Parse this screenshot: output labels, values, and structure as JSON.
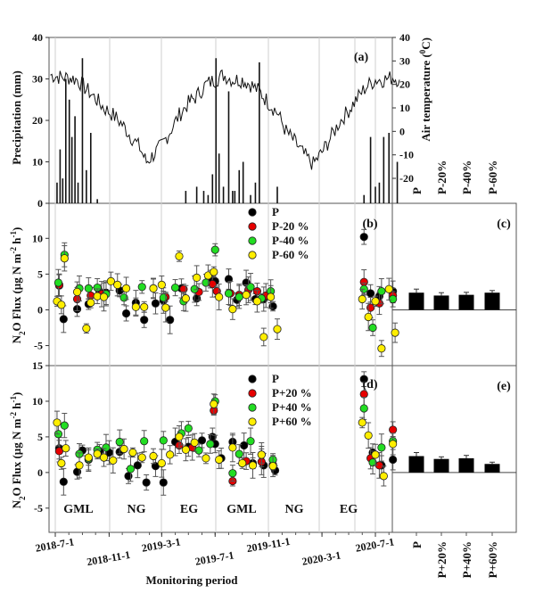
{
  "chart_data": [
    {
      "id": "a",
      "panel_label": "(a)",
      "type": "line",
      "title": "",
      "xlabel": "",
      "ylabel_left": "Precipitation (mm)",
      "ylabel_right": "Air temperature (0C)",
      "ylabel_right_main": "Air temperature (",
      "ylabel_right_sup": "0",
      "ylabel_right_end": "C)",
      "ylim_left": [
        0,
        40
      ],
      "yticks_left": [
        0,
        10,
        20,
        30,
        40
      ],
      "ylim_right": [
        -27,
        40
      ],
      "yticks_right": [
        -20,
        -10,
        0,
        10,
        20,
        30,
        40
      ],
      "temperature_series": {
        "name": "Air temperature",
        "x": [
          "2018-6-20",
          "2018-7-15",
          "2018-8-1",
          "2018-8-20",
          "2018-9-10",
          "2018-10-1",
          "2018-10-20",
          "2018-11-10",
          "2018-12-1",
          "2018-12-20",
          "2019-1-10",
          "2019-1-25",
          "2019-2-10",
          "2019-3-1",
          "2019-3-20",
          "2019-4-10",
          "2019-5-1",
          "2019-5-20",
          "2019-6-10",
          "2019-7-1",
          "2019-7-20",
          "2019-8-10",
          "2019-9-1",
          "2019-9-20",
          "2019-10-10",
          "2019-11-1",
          "2019-11-20",
          "2019-12-10",
          "2020-1-1",
          "2020-1-20",
          "2020-2-10",
          "2020-3-1",
          "2020-3-20",
          "2020-4-10",
          "2020-5-1",
          "2020-5-20",
          "2020-6-10",
          "2020-7-1",
          "2020-7-20",
          "2020-8-10",
          "2020-8-25"
        ],
        "values": [
          24,
          23,
          23,
          22,
          18,
          14,
          10,
          7,
          3,
          -2,
          -7,
          -13,
          -10,
          -6,
          0,
          7,
          12,
          15,
          20,
          22,
          24,
          22,
          22,
          20,
          17,
          12,
          8,
          0,
          -5,
          -10,
          -14,
          -9,
          -3,
          4,
          9,
          14,
          19,
          22,
          22,
          23,
          22
        ]
      },
      "precipitation_series": {
        "name": "Precipitation",
        "x": [
          "2018-7-5",
          "2018-7-12",
          "2018-7-18",
          "2018-7-25",
          "2018-8-2",
          "2018-8-8",
          "2018-8-15",
          "2018-8-22",
          "2018-9-1",
          "2018-9-10",
          "2018-9-20",
          "2018-10-5",
          "2019-4-25",
          "2019-5-20",
          "2019-6-5",
          "2019-6-15",
          "2019-6-25",
          "2019-7-3",
          "2019-7-10",
          "2019-7-20",
          "2019-8-1",
          "2019-8-10",
          "2019-8-15",
          "2019-8-25",
          "2019-9-3",
          "2019-9-20",
          "2019-10-1",
          "2019-10-10",
          "2019-11-20",
          "2020-6-5",
          "2020-6-20",
          "2020-7-1",
          "2020-7-10",
          "2020-7-20",
          "2020-8-1",
          "2020-8-20"
        ],
        "values": [
          5,
          13,
          6,
          30,
          25,
          16,
          21,
          5,
          35,
          8,
          17,
          1,
          3,
          4,
          3,
          2,
          7,
          35,
          12,
          4,
          27,
          3,
          3,
          8,
          10,
          2,
          5,
          34,
          4,
          2,
          16,
          4,
          5,
          16,
          17,
          10
        ]
      }
    },
    {
      "id": "b",
      "panel_label": "(b)",
      "type": "scatter",
      "ylabel": "N2O Flux (µg N m-2 h-1)",
      "ylim": [
        -7.5,
        15
      ],
      "yticks": [
        -5,
        0,
        5,
        10
      ],
      "legend": [
        "P",
        "P-20 %",
        "P-40 %",
        "P-60 %"
      ],
      "legend_position": "top-center",
      "series": [
        {
          "name": "P",
          "color": "#000000",
          "x": [
            "2018-7-10",
            "2018-7-20",
            "2018-8-20",
            "2018-9-15",
            "2018-10-10",
            "2018-10-25",
            "2018-11-25",
            "2018-12-10",
            "2019-1-1",
            "2019-1-20",
            "2019-2-15",
            "2019-3-5",
            "2019-3-20",
            "2019-4-15",
            "2019-5-20",
            "2019-6-20",
            "2019-7-1",
            "2019-8-1",
            "2019-8-20",
            "2019-9-10",
            "2019-10-1",
            "2019-10-20",
            "2019-11-10",
            "2020-6-5",
            "2020-6-20",
            "2020-7-10",
            "2020-8-10"
          ],
          "values": [
            3.4,
            -1.3,
            0.1,
            0.8,
            2.6,
            2.4,
            2.7,
            -0.5,
            1.0,
            -1.4,
            0.9,
            1.3,
            -1.4,
            3.0,
            1.6,
            4.3,
            4.0,
            4.3,
            1.4,
            3.8,
            1.5,
            1.5,
            0.5,
            10.2,
            2.3,
            1.9,
            2.6
          ]
        },
        {
          "name": "P-20 %",
          "color": "#e60000",
          "x": [
            "2018-7-10",
            "2018-8-20",
            "2018-9-20",
            "2018-10-15",
            "2019-3-10",
            "2019-4-20",
            "2019-5-25",
            "2019-6-25",
            "2019-7-5",
            "2019-8-5",
            "2019-8-25",
            "2019-9-15",
            "2019-10-5",
            "2019-10-25",
            "2020-6-5",
            "2020-6-20",
            "2020-7-10",
            "2020-8-10"
          ],
          "values": [
            3.5,
            1.5,
            2.0,
            2.2,
            1.8,
            2.9,
            2.5,
            3.6,
            2.6,
            2.3,
            2.1,
            2.8,
            2.6,
            2.0,
            3.9,
            0.3,
            0.9,
            2.0
          ]
        },
        {
          "name": "P-40 %",
          "color": "#22dd22",
          "x": [
            "2018-7-8",
            "2018-7-22",
            "2018-8-25",
            "2018-9-15",
            "2018-10-5",
            "2018-10-25",
            "2018-12-5",
            "2019-1-15",
            "2019-2-10",
            "2019-3-5",
            "2019-4-1",
            "2019-4-20",
            "2019-5-15",
            "2019-6-10",
            "2019-7-1",
            "2019-8-1",
            "2019-8-25",
            "2019-9-20",
            "2019-10-15",
            "2019-11-5",
            "2020-6-5",
            "2020-6-25",
            "2020-7-15",
            "2020-8-10"
          ],
          "values": [
            3.8,
            7.7,
            3.0,
            3.0,
            3.1,
            2.2,
            1.7,
            3.2,
            3.0,
            1.7,
            3.1,
            1.2,
            2.9,
            3.8,
            8.4,
            2.3,
            1.8,
            3.2,
            1.6,
            2.6,
            2.9,
            -2.5,
            2.6,
            1.5
          ]
        },
        {
          "name": "P-60 %",
          "color": "#ffee00",
          "x": [
            "2018-7-5",
            "2018-7-15",
            "2018-7-22",
            "2018-8-20",
            "2018-9-10",
            "2018-9-20",
            "2018-10-5",
            "2018-10-20",
            "2018-11-5",
            "2018-11-20",
            "2018-12-10",
            "2019-1-1",
            "2019-1-20",
            "2019-2-10",
            "2019-3-1",
            "2019-3-10",
            "2019-4-10",
            "2019-4-25",
            "2019-5-20",
            "2019-6-15",
            "2019-6-28",
            "2019-7-10",
            "2019-8-10",
            "2019-9-10",
            "2019-10-5",
            "2019-10-20",
            "2019-11-5",
            "2019-11-20",
            "2020-6-1",
            "2020-6-15",
            "2020-7-1",
            "2020-7-15",
            "2020-8-1",
            "2020-8-15"
          ],
          "values": [
            1.2,
            0.7,
            7.2,
            2.5,
            -2.6,
            1.0,
            1.9,
            1.8,
            4.0,
            3.5,
            3.0,
            0.4,
            0.4,
            3.0,
            3.5,
            0.3,
            7.5,
            1.6,
            4.5,
            4.8,
            5.3,
            1.8,
            0.1,
            2.1,
            1.2,
            -3.8,
            1.8,
            -2.7,
            1.5,
            -1.0,
            1.2,
            -5.4,
            2.9,
            -3.2
          ]
        }
      ]
    },
    {
      "id": "c",
      "panel_label": "(c)",
      "type": "bar",
      "categories": [
        "P",
        "P-20%",
        "P-40%",
        "P-60%"
      ],
      "values": [
        2.4,
        2.0,
        2.1,
        2.4
      ],
      "errors": [
        0.5,
        0.4,
        0.35,
        0.3
      ],
      "ylim": [
        -7.5,
        15
      ]
    },
    {
      "id": "d",
      "panel_label": "(d)",
      "type": "scatter",
      "ylabel": "N2O Flux (µg N m-2 h-1)",
      "ylim": [
        -8,
        15
      ],
      "yticks": [
        -5,
        0,
        5,
        10,
        15
      ],
      "legend": [
        "P",
        "P+20 %",
        "P+40 %",
        "P+60 %"
      ],
      "legend_position": "top-center",
      "season_labels": [
        "GML",
        "NG",
        "EG",
        "GML",
        "NG",
        "EG"
      ],
      "series": [
        {
          "name": "P",
          "color": "#000000",
          "x": [
            "2018-7-10",
            "2018-7-20",
            "2018-8-20",
            "2018-9-1",
            "2018-10-10",
            "2018-11-1",
            "2018-11-25",
            "2018-12-15",
            "2019-1-5",
            "2019-1-25",
            "2019-2-15",
            "2019-3-5",
            "2019-4-1",
            "2019-5-1",
            "2019-6-1",
            "2019-6-25",
            "2019-7-1",
            "2019-7-15",
            "2019-8-10",
            "2019-9-5",
            "2019-9-25",
            "2019-10-20",
            "2019-11-15",
            "2020-6-5",
            "2020-6-25",
            "2020-7-15",
            "2020-8-10"
          ],
          "values": [
            3.4,
            -1.3,
            0.1,
            3.1,
            3.0,
            2.8,
            2.9,
            -0.5,
            1.0,
            -1.4,
            0.9,
            -1.4,
            4.3,
            3.6,
            4.5,
            5.0,
            4.0,
            2.0,
            4.3,
            3.8,
            1.3,
            1.0,
            0.3,
            13.1,
            2.8,
            1.0,
            1.8
          ]
        },
        {
          "name": "P+20 %",
          "color": "#e60000",
          "x": [
            "2018-7-10",
            "2018-9-15",
            "2019-4-10",
            "2019-5-10",
            "2019-6-28",
            "2019-8-10",
            "2019-9-10",
            "2019-10-15",
            "2019-11-10",
            "2020-6-5",
            "2020-6-20",
            "2020-7-10",
            "2020-8-10"
          ],
          "values": [
            3.0,
            1.8,
            3.8,
            3.5,
            8.7,
            -1.2,
            1.6,
            1.5,
            1.1,
            11.0,
            2.0,
            1.0,
            6.0
          ]
        },
        {
          "name": "P+40 %",
          "color": "#22dd22",
          "x": [
            "2018-7-8",
            "2018-7-22",
            "2018-8-25",
            "2018-9-15",
            "2018-10-5",
            "2018-10-25",
            "2018-11-25",
            "2018-12-20",
            "2019-1-20",
            "2019-3-5",
            "2019-4-15",
            "2019-5-1",
            "2019-5-25",
            "2019-6-20",
            "2019-7-1",
            "2019-8-10",
            "2019-8-25",
            "2019-9-20",
            "2019-10-15",
            "2019-11-10",
            "2020-6-5",
            "2020-6-25",
            "2020-7-15",
            "2020-8-10"
          ],
          "values": [
            5.4,
            6.6,
            2.6,
            1.9,
            3.2,
            3.5,
            4.3,
            0.5,
            4.4,
            4.5,
            5.5,
            6.2,
            3.1,
            4.0,
            10.0,
            -0.1,
            2.6,
            4.4,
            2.5,
            1.8,
            9.0,
            1.4,
            3.5,
            4.4
          ]
        },
        {
          "name": "P+60 %",
          "color": "#ffee00",
          "x": [
            "2018-7-5",
            "2018-7-15",
            "2018-7-25",
            "2018-8-25",
            "2018-9-15",
            "2018-10-5",
            "2018-10-20",
            "2018-11-10",
            "2018-12-5",
            "2018-12-25",
            "2019-1-15",
            "2019-2-10",
            "2019-3-1",
            "2019-3-20",
            "2019-4-10",
            "2019-4-25",
            "2019-5-15",
            "2019-6-10",
            "2019-6-28",
            "2019-7-10",
            "2019-8-10",
            "2019-9-1",
            "2019-9-25",
            "2019-10-15",
            "2019-11-10",
            "2020-6-1",
            "2020-6-15",
            "2020-7-1",
            "2020-7-20",
            "2020-8-10"
          ],
          "values": [
            7.0,
            1.3,
            3.4,
            1.0,
            2.1,
            2.6,
            2.1,
            1.7,
            3.3,
            2.8,
            2.1,
            2.3,
            1.3,
            2.5,
            5.0,
            3.2,
            4.2,
            2.0,
            9.6,
            1.8,
            3.5,
            1.3,
            1.0,
            2.5,
            0.9,
            7.0,
            5.2,
            2.5,
            -0.5,
            4.0
          ]
        }
      ]
    },
    {
      "id": "e",
      "panel_label": "(e)",
      "type": "bar",
      "categories": [
        "P",
        "P+20%",
        "P+40%",
        "P+60%"
      ],
      "values": [
        2.3,
        1.9,
        2.0,
        1.2
      ],
      "errors": [
        0.5,
        0.3,
        0.4,
        0.25
      ],
      "ylim": [
        -8,
        15
      ]
    }
  ],
  "x_axis": {
    "xlabel": "Monitoring period",
    "tick_labels": [
      "2018-7-1",
      "2018-11-1",
      "2019-3-1",
      "2019-7-1",
      "2019-11-1",
      "2020-3-1",
      "2020-7-1"
    ],
    "xlim": [
      "2018-6-20",
      "2020-8-31"
    ]
  },
  "panel_a_right_labels": [
    "P",
    "P-20%",
    "P-40%",
    "P-60%"
  ],
  "ylabel_flux_main": "N",
  "ylabel_flux_sub": "2",
  "ylabel_flux_rest": "O Flux  (µg N m",
  "ylabel_flux_sup1": "-2",
  "ylabel_flux_mid": " h",
  "ylabel_flux_sup2": "-1",
  "ylabel_flux_end": ")"
}
